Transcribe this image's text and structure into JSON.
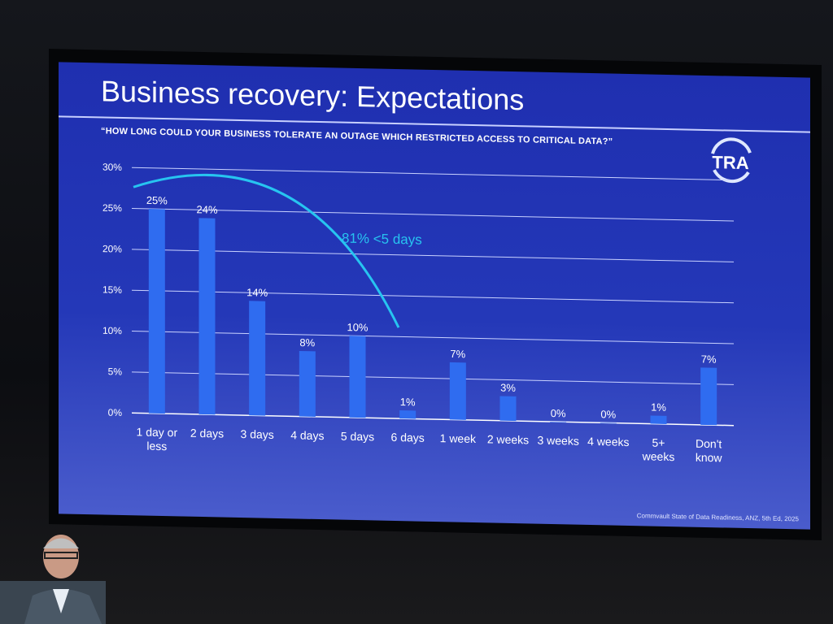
{
  "slide": {
    "title": "Business recovery: Expectations",
    "subtitle": "“HOW LONG COULD YOUR BUSINESS TOLERATE AN OUTAGE WHICH RESTRICTED ACCESS TO CRITICAL DATA?”",
    "logo_text": "TRA",
    "source": "Commvault State of Data Readiness, ANZ, 5th Ed, 2025",
    "annotation": "81% <5 days"
  },
  "colors": {
    "background": "#2438b8",
    "bar": "#2f6cf0",
    "annotation": "#27c4f0",
    "text": "#ffffff"
  },
  "chart_data": {
    "type": "bar",
    "title": "Business recovery: Expectations",
    "categories": [
      "1 day or less",
      "2 days",
      "3 days",
      "4 days",
      "5 days",
      "6 days",
      "1 week",
      "2 weeks",
      "3 weeks",
      "4 weeks",
      "5+ weeks",
      "Don't know"
    ],
    "values": [
      25,
      24,
      14,
      8,
      10,
      1,
      7,
      3,
      0,
      0,
      1,
      7
    ],
    "data_labels": [
      "25%",
      "24%",
      "14%",
      "8%",
      "10%",
      "1%",
      "7%",
      "3%",
      "0%",
      "0%",
      "1%",
      "7%"
    ],
    "yticks": [
      "0%",
      "5%",
      "10%",
      "15%",
      "20%",
      "25%",
      "30%"
    ],
    "ylim": [
      0,
      30
    ],
    "grid": true,
    "legend": "none"
  }
}
